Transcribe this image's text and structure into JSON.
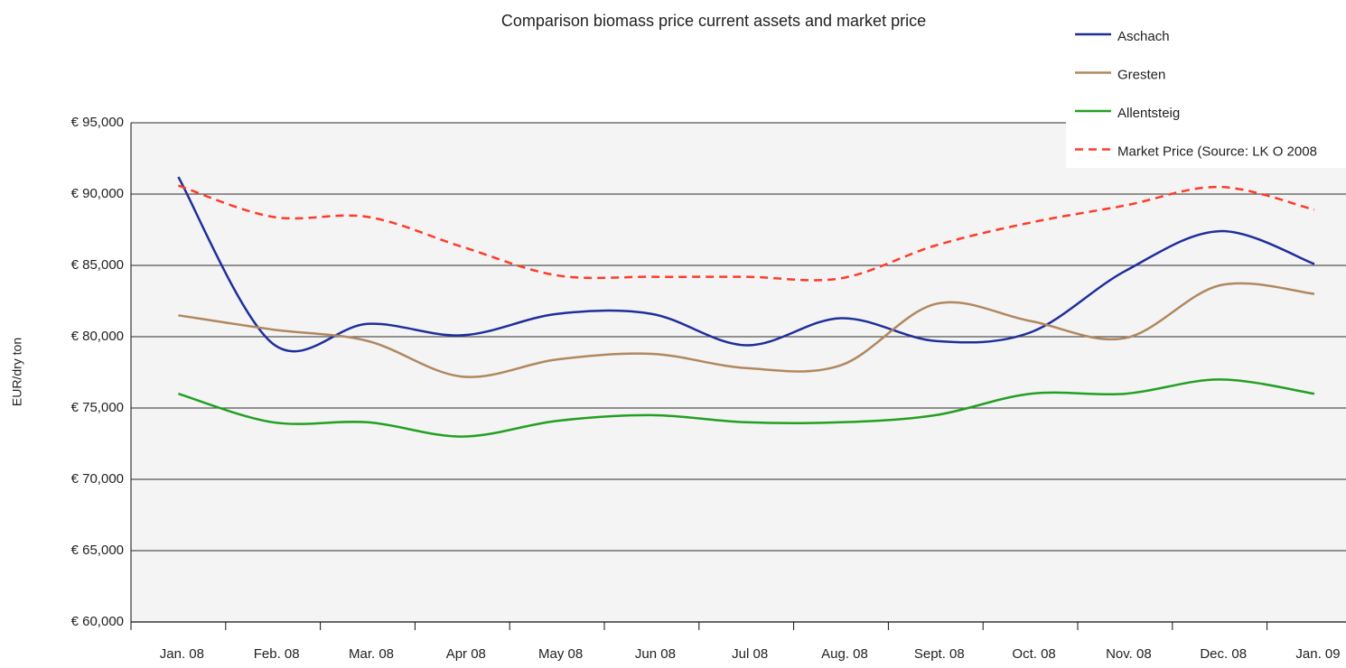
{
  "chart_data": {
    "type": "line",
    "title": "Comparison biomass price current assets and market price",
    "ylabel": "EUR/dry ton",
    "categories": [
      "Jan. 08",
      "Feb. 08",
      "Mar. 08",
      "Apr 08",
      "May 08",
      "Jun 08",
      "Jul 08",
      "Aug. 08",
      "Sept. 08",
      "Oct. 08",
      "Nov. 08",
      "Dec. 08",
      "Jan. 09"
    ],
    "series": [
      {
        "name": "Aschach",
        "color": "#1f2f9a",
        "linestyle": "solid",
        "values": [
          91200,
          79500,
          80900,
          80100,
          81600,
          81600,
          79400,
          81300,
          79700,
          80300,
          84600,
          87400,
          85100
        ]
      },
      {
        "name": "Gresten",
        "color": "#b08860",
        "linestyle": "solid",
        "values": [
          81500,
          80500,
          79700,
          77200,
          78400,
          78800,
          77800,
          78000,
          82300,
          81100,
          79900,
          83600,
          83000
        ]
      },
      {
        "name": "Allentsteig",
        "color": "#22a022",
        "linestyle": "solid",
        "values": [
          76000,
          74000,
          74000,
          73000,
          74100,
          74500,
          74000,
          74000,
          74500,
          76000,
          76000,
          77000,
          76000
        ]
      },
      {
        "name": "Market Price (Source: LK O 2008",
        "color": "#ff3b2a",
        "linestyle": "dashed",
        "values": [
          90600,
          88400,
          88400,
          86300,
          84300,
          84200,
          84200,
          84100,
          86400,
          88000,
          89200,
          90500,
          88900
        ]
      }
    ],
    "ylim": [
      60000,
      95000
    ],
    "yticks": [
      {
        "value": 60000,
        "label": "€ 60,000"
      },
      {
        "value": 65000,
        "label": "€ 65,000"
      },
      {
        "value": 70000,
        "label": "€ 70,000"
      },
      {
        "value": 75000,
        "label": "€ 75,000"
      },
      {
        "value": 80000,
        "label": "€ 80,000"
      },
      {
        "value": 85000,
        "label": "€ 85,000"
      },
      {
        "value": 90000,
        "label": "€ 90,000"
      },
      {
        "value": 95000,
        "label": "€ 95,000"
      }
    ],
    "grid": true,
    "legend": "upper right"
  }
}
